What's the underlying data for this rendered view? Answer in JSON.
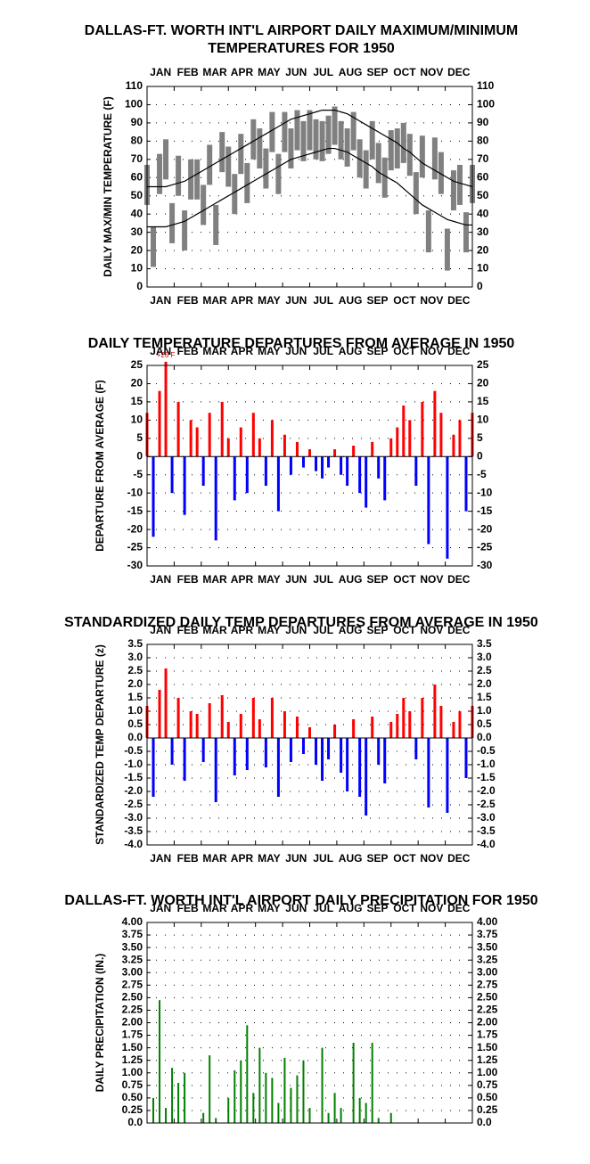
{
  "months": [
    "JAN",
    "FEB",
    "MAR",
    "APR",
    "MAY",
    "JUN",
    "JUL",
    "AUG",
    "SEP",
    "OCT",
    "NOV",
    "DEC"
  ],
  "chart_data": [
    {
      "type": "range",
      "title": [
        "DALLAS-FT. WORTH INT'L AIRPORT DAILY MAXIMUM/MINIMUM",
        "TEMPERATURES FOR 1950"
      ],
      "ylabel": "DAILY MAX/MIN TEMPERATURE (F)",
      "month_labels": [
        "top",
        "bottom"
      ],
      "grid": true,
      "xlim": [
        1,
        365
      ],
      "ylim": [
        0,
        110
      ],
      "yticks": [
        0,
        10,
        20,
        30,
        40,
        50,
        60,
        70,
        80,
        90,
        100,
        110
      ],
      "x": [
        1,
        8,
        15,
        22,
        29,
        36,
        43,
        50,
        57,
        64,
        71,
        78,
        85,
        92,
        99,
        106,
        113,
        120,
        127,
        134,
        141,
        148,
        155,
        162,
        169,
        176,
        183,
        190,
        197,
        204,
        211,
        218,
        225,
        232,
        239,
        246,
        253,
        260,
        267,
        274,
        281,
        288,
        295,
        302,
        309,
        316,
        323,
        330,
        337,
        344,
        351,
        358,
        365
      ],
      "range": {
        "color": "#808080",
        "high": [
          67,
          33,
          73,
          81,
          46,
          72,
          42,
          70,
          70,
          56,
          78,
          45,
          85,
          77,
          62,
          84,
          68,
          92,
          87,
          76,
          96,
          73,
          96,
          87,
          97,
          91,
          97,
          92,
          91,
          94,
          99,
          91,
          87,
          96,
          81,
          75,
          91,
          79,
          71,
          86,
          87,
          90,
          84,
          63,
          83,
          42,
          82,
          74,
          32,
          64,
          67,
          41,
          67
        ],
        "low": [
          45,
          11,
          51,
          59,
          24,
          50,
          20,
          48,
          48,
          34,
          56,
          23,
          63,
          55,
          40,
          62,
          46,
          70,
          65,
          54,
          74,
          51,
          74,
          65,
          75,
          69,
          75,
          70,
          69,
          73,
          78,
          70,
          66,
          75,
          60,
          54,
          70,
          57,
          49,
          64,
          65,
          68,
          61,
          40,
          60,
          19,
          59,
          51,
          9,
          42,
          45,
          19,
          46
        ]
      },
      "series": [
        {
          "color": "#000000",
          "values": [
            55,
            55,
            55,
            55,
            56,
            57,
            58,
            60,
            62,
            64,
            66,
            68,
            70,
            72,
            74,
            76,
            78,
            80,
            82,
            84,
            86,
            88,
            90,
            92,
            93,
            94,
            95,
            96,
            97,
            97,
            97,
            96,
            95,
            93,
            91,
            89,
            87,
            85,
            83,
            81,
            79,
            76,
            74,
            71,
            68,
            66,
            64,
            62,
            60,
            58,
            57,
            56,
            55
          ]
        },
        {
          "color": "#000000",
          "values": [
            33,
            33,
            33,
            33,
            34,
            35,
            36,
            38,
            40,
            42,
            44,
            46,
            48,
            50,
            52,
            54,
            56,
            58,
            60,
            62,
            64,
            66,
            68,
            70,
            71,
            72,
            73,
            74,
            75,
            76,
            76,
            75,
            74,
            72,
            70,
            68,
            66,
            63,
            61,
            59,
            57,
            54,
            51,
            48,
            45,
            43,
            41,
            39,
            37,
            36,
            35,
            34,
            34
          ]
        }
      ]
    },
    {
      "type": "signed_bar",
      "title": [
        "DAILY TEMPERATURE DEPARTURES FROM AVERAGE IN 1950"
      ],
      "ylabel": "DEPARTURE FROM AVERAGE (F)",
      "month_labels": [
        "top",
        "bottom"
      ],
      "grid": true,
      "xlim": [
        1,
        365
      ],
      "ylim": [
        -30,
        25
      ],
      "yticks": [
        -30,
        -25,
        -20,
        -15,
        -10,
        -5,
        0,
        5,
        10,
        15,
        20,
        25
      ],
      "pos_color": "#ff0000",
      "neg_color": "#0000ff",
      "x": [
        1,
        8,
        15,
        22,
        29,
        36,
        43,
        50,
        57,
        64,
        71,
        78,
        85,
        92,
        99,
        106,
        113,
        120,
        127,
        134,
        141,
        148,
        155,
        162,
        169,
        176,
        183,
        190,
        197,
        204,
        211,
        218,
        225,
        232,
        239,
        246,
        253,
        260,
        267,
        274,
        281,
        288,
        295,
        302,
        309,
        316,
        323,
        330,
        337,
        344,
        351,
        358,
        365
      ],
      "values": [
        12,
        -22,
        18,
        26,
        -10,
        15,
        -16,
        10,
        8,
        -8,
        12,
        -23,
        15,
        5,
        -12,
        8,
        -10,
        12,
        5,
        -8,
        10,
        -15,
        6,
        -5,
        4,
        -3,
        2,
        -4,
        -6,
        -3,
        2,
        -5,
        -8,
        3,
        -10,
        -14,
        4,
        -6,
        -12,
        5,
        8,
        14,
        10,
        -8,
        15,
        -24,
        18,
        12,
        -28,
        6,
        10,
        -15,
        12
      ],
      "annotation": {
        "text": "+26 F",
        "x": 22,
        "y": 26
      }
    },
    {
      "type": "signed_bar",
      "title": [
        "STANDARDIZED DAILY TEMP DEPARTURES FROM AVERAGE IN 1950"
      ],
      "ylabel": "STANDARDIZED TEMP DEPARTURE (z)",
      "month_labels": [
        "top",
        "bottom"
      ],
      "grid": true,
      "xlim": [
        1,
        365
      ],
      "ylim": [
        -4,
        3.5
      ],
      "yticks": [
        {
          "value": -4,
          "label": "-4.0"
        },
        -3.5,
        {
          "value": -3,
          "label": "-3.0"
        },
        -2.5,
        {
          "value": -2,
          "label": "-2.0"
        },
        -1.5,
        {
          "value": -1,
          "label": "-1.0"
        },
        -0.5,
        {
          "value": 0,
          "label": "0.0"
        },
        0.5,
        {
          "value": 1,
          "label": "1.0"
        },
        1.5,
        {
          "value": 2,
          "label": "2.0"
        },
        2.5,
        {
          "value": 3,
          "label": "3.0"
        },
        3.5
      ],
      "pos_color": "#ff0000",
      "neg_color": "#0000ff",
      "x": [
        1,
        8,
        15,
        22,
        29,
        36,
        43,
        50,
        57,
        64,
        71,
        78,
        85,
        92,
        99,
        106,
        113,
        120,
        127,
        134,
        141,
        148,
        155,
        162,
        169,
        176,
        183,
        190,
        197,
        204,
        211,
        218,
        225,
        232,
        239,
        246,
        253,
        260,
        267,
        274,
        281,
        288,
        295,
        302,
        309,
        316,
        323,
        330,
        337,
        344,
        351,
        358,
        365
      ],
      "values": [
        1.2,
        -2.2,
        1.8,
        2.6,
        -1.0,
        1.5,
        -1.6,
        1.0,
        0.9,
        -0.9,
        1.3,
        -2.4,
        1.6,
        0.6,
        -1.4,
        0.9,
        -1.2,
        1.5,
        0.7,
        -1.1,
        1.5,
        -2.2,
        1.0,
        -0.9,
        0.8,
        -0.6,
        0.4,
        -1.0,
        -1.6,
        -0.8,
        0.5,
        -1.3,
        -2.0,
        0.7,
        -2.2,
        -2.9,
        0.8,
        -1.0,
        -1.7,
        0.6,
        0.9,
        1.5,
        1.0,
        -0.8,
        1.5,
        -2.6,
        2.0,
        1.2,
        -2.8,
        0.6,
        1.0,
        -1.5,
        1.2
      ]
    },
    {
      "type": "bar",
      "title": [
        "DALLAS-FT. WORTH INT'L AIRPORT DAILY PRECIPITATION FOR 1950"
      ],
      "ylabel": "DAILY PRECIPITATION (IN.)",
      "month_labels": [
        "top"
      ],
      "grid": true,
      "xlim": [
        1,
        365
      ],
      "ylim": [
        0,
        4
      ],
      "yticks": [
        {
          "value": 0,
          "label": "0.0"
        },
        0.25,
        {
          "value": 0.5,
          "label": "0.50"
        },
        0.75,
        {
          "value": 1,
          "label": "1.00"
        },
        1.25,
        {
          "value": 1.5,
          "label": "1.50"
        },
        1.75,
        {
          "value": 2,
          "label": "2.00"
        },
        2.25,
        {
          "value": 2.5,
          "label": "2.50"
        },
        2.75,
        {
          "value": 3,
          "label": "3.00"
        },
        3.25,
        {
          "value": 3.5,
          "label": "3.50"
        },
        3.75,
        {
          "value": 4,
          "label": "4.00"
        }
      ],
      "color": "#008000",
      "x": [
        1,
        8,
        15,
        22,
        29,
        36,
        43,
        50,
        57,
        64,
        71,
        78,
        85,
        92,
        99,
        106,
        113,
        120,
        127,
        134,
        141,
        148,
        155,
        162,
        169,
        176,
        183,
        190,
        197,
        204,
        211,
        218,
        225,
        232,
        239,
        246,
        253,
        260,
        267,
        274,
        281,
        288,
        295,
        302,
        309,
        316,
        323,
        330,
        337,
        344,
        351,
        358,
        365
      ],
      "values": [
        0,
        0.5,
        2.45,
        0.3,
        1.1,
        0.8,
        1.0,
        0,
        0,
        0.2,
        1.35,
        0.1,
        0,
        0.5,
        1.05,
        1.25,
        1.95,
        0.6,
        1.5,
        1.0,
        0.9,
        0.4,
        1.3,
        0.7,
        0.95,
        1.25,
        0.3,
        0,
        1.5,
        0.2,
        0.6,
        0.3,
        0,
        1.6,
        0.5,
        0.4,
        1.6,
        0.1,
        0,
        0.2,
        0,
        0,
        0,
        0,
        0,
        0,
        0,
        0,
        0,
        0,
        0,
        0,
        0
      ]
    }
  ]
}
